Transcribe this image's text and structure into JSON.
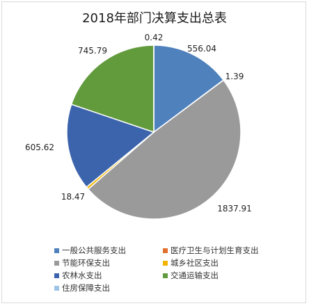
{
  "chart_data": {
    "type": "pie",
    "title": "2018年部门决算支出总表",
    "series": [
      {
        "name": "一般公共服务支出",
        "value": 556.04,
        "label": "556.04",
        "color": "#4f81bd"
      },
      {
        "name": "医疗卫生与计划生育支出",
        "value": 1.39,
        "label": "1.39",
        "color": "#e0702c"
      },
      {
        "name": "节能环保支出",
        "value": 1837.91,
        "label": "1837.91",
        "color": "#9a9a9a"
      },
      {
        "name": "城乡社区支出",
        "value": 18.47,
        "label": "18.47",
        "color": "#f2b300"
      },
      {
        "name": "农林水支出",
        "value": 605.62,
        "label": "605.62",
        "color": "#3c64ac"
      },
      {
        "name": "交通运输支出",
        "value": 745.79,
        "label": "745.79",
        "color": "#629b3c"
      },
      {
        "name": "住房保障支出",
        "value": 0.42,
        "label": "0.42",
        "color": "#9dc3e6"
      }
    ],
    "legend_position": "bottom"
  }
}
